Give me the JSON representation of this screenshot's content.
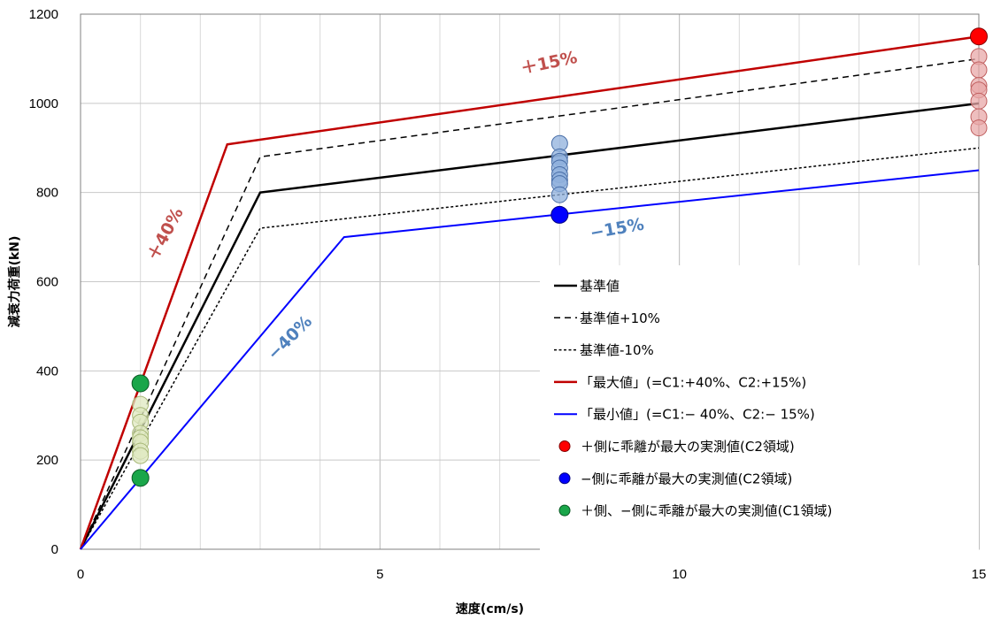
{
  "chart_data": {
    "type": "line",
    "xlabel": "速度(cm/s)",
    "ylabel": "減衰力荷重(kN)",
    "xlim": [
      0,
      15
    ],
    "ylim": [
      0,
      1200
    ],
    "x_ticks": [
      "0",
      "5",
      "10",
      "15"
    ],
    "y_ticks": [
      "0",
      "200",
      "400",
      "600",
      "800",
      "1000",
      "1200"
    ],
    "grid": true,
    "legend_position": "lower-right",
    "series": [
      {
        "name": "基準値",
        "color": "#000000",
        "dash": "solid",
        "width": 2.5,
        "x": [
          0,
          3,
          15
        ],
        "y": [
          0,
          800,
          1000
        ]
      },
      {
        "name": "基準値+10%",
        "color": "#000000",
        "dash": "dashed",
        "width": 1.5,
        "x": [
          0,
          3,
          15
        ],
        "y": [
          0,
          880,
          1100
        ]
      },
      {
        "name": "基準値-10%",
        "color": "#000000",
        "dash": "dotted",
        "width": 1.5,
        "x": [
          0,
          3,
          15
        ],
        "y": [
          0,
          720,
          900
        ]
      },
      {
        "name": "「最大値」(=C1:+40%、C2:+15%)",
        "color": "#c00000",
        "dash": "solid",
        "width": 2.5,
        "x": [
          0,
          2.45,
          15
        ],
        "y": [
          0,
          908,
          1150
        ]
      },
      {
        "name": "「最小値」(=C1:− 40%、C2:− 15%)",
        "color": "#0000ff",
        "dash": "solid",
        "width": 2,
        "x": [
          0,
          4.4,
          15
        ],
        "y": [
          0,
          700,
          850
        ]
      }
    ],
    "scatter_faint": [
      {
        "color": "#e8a8a8",
        "stroke": "#c06060",
        "x": 15,
        "y": [
          1105,
          1075,
          1040,
          1030,
          1005,
          970,
          945
        ]
      },
      {
        "color": "#8fb0dc",
        "stroke": "#4a6fa8",
        "x": 8,
        "y": [
          910,
          880,
          870,
          855,
          840,
          828,
          820,
          795
        ]
      },
      {
        "color": "#dfe8c0",
        "stroke": "#a8b878",
        "x": 1,
        "y": [
          325,
          300,
          285,
          260,
          250,
          240,
          220,
          210
        ]
      }
    ],
    "scatter_highlight": [
      {
        "name": "＋側に乖離が最大の実測値(C2領域)",
        "color": "#ff0000",
        "stroke": "#800000",
        "x": [
          15
        ],
        "y": [
          1150
        ]
      },
      {
        "name": "−側に乖離が最大の実測値(C2領域)",
        "color": "#0000ff",
        "stroke": "#000080",
        "x": [
          8
        ],
        "y": [
          750
        ]
      },
      {
        "name": "＋側、−側に乖離が最大の実測値(C1領域)",
        "color": "#1aa64a",
        "stroke": "#0b5a25",
        "x": [
          1,
          1
        ],
        "y": [
          372,
          160
        ]
      }
    ],
    "annotations": [
      {
        "text": "＋15%",
        "color": "#c0504d"
      },
      {
        "text": "＋40%",
        "color": "#c0504d"
      },
      {
        "text": "−15%",
        "color": "#4f81bd"
      },
      {
        "text": "−40%",
        "color": "#4f81bd"
      }
    ]
  }
}
